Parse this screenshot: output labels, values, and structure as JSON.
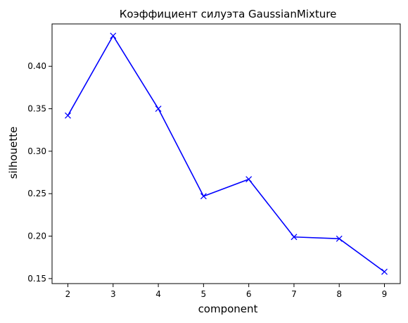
{
  "chart_data": {
    "type": "line",
    "title": "Коэффициент силуэта GaussianMixture",
    "xlabel": "component",
    "ylabel": "silhouette",
    "x": [
      2,
      3,
      4,
      5,
      6,
      7,
      8,
      9
    ],
    "series": [
      {
        "values": [
          0.342,
          0.436,
          0.35,
          0.247,
          0.267,
          0.199,
          0.197,
          0.158
        ],
        "color": "#0000ff",
        "marker": "x"
      }
    ],
    "xlim": [
      1.65,
      9.35
    ],
    "ylim": [
      0.1441,
      0.4499
    ],
    "xticks": [
      2,
      3,
      4,
      5,
      6,
      7,
      8,
      9
    ],
    "yticks": [
      0.15,
      0.2,
      0.25,
      0.3,
      0.35,
      0.4
    ],
    "ytick_labels": [
      "0.15",
      "0.20",
      "0.25",
      "0.30",
      "0.35",
      "0.40"
    ],
    "grid": false,
    "legend": false
  }
}
